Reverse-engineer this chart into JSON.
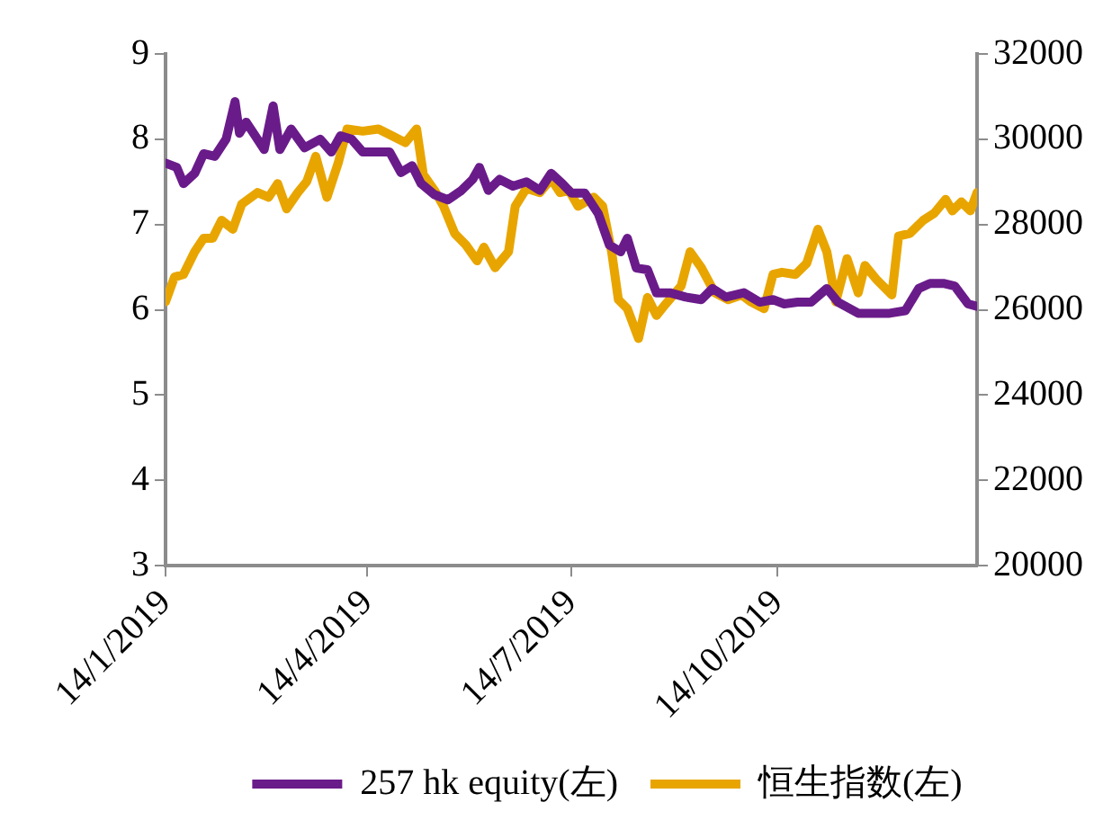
{
  "chart_data": {
    "type": "line",
    "xlim": [
      "2019-01-14",
      "2020-01-11"
    ],
    "xticks": [
      {
        "value": "2019-01-14",
        "label": "14/1/2019"
      },
      {
        "value": "2019-04-14",
        "label": "14/4/2019"
      },
      {
        "value": "2019-07-14",
        "label": "14/7/2019"
      },
      {
        "value": "2019-10-14",
        "label": "14/10/2019"
      }
    ],
    "ylim": [
      3,
      9
    ],
    "yticks": [
      3,
      4,
      5,
      6,
      7,
      8,
      9
    ],
    "y2lim": [
      20000,
      32000
    ],
    "y2ticks": [
      20000,
      22000,
      24000,
      26000,
      28000,
      30000,
      32000
    ],
    "grid": false,
    "legend": "bottom",
    "marker": "none",
    "line_style": "solid",
    "series": [
      {
        "name": "257 hk equity(左)",
        "color": "#6a1b8a",
        "x": [
          "2019-01-14",
          "2019-01-19",
          "2019-01-22",
          "2019-01-27",
          "2019-01-31",
          "2019-02-05",
          "2019-02-10",
          "2019-02-14",
          "2019-02-16",
          "2019-02-19",
          "2019-02-23",
          "2019-02-27",
          "2019-03-03",
          "2019-03-06",
          "2019-03-11",
          "2019-03-17",
          "2019-03-24",
          "2019-03-29",
          "2019-04-02",
          "2019-04-07",
          "2019-04-12",
          "2019-04-19",
          "2019-04-24",
          "2019-04-29",
          "2019-05-04",
          "2019-05-08",
          "2019-05-14",
          "2019-05-20",
          "2019-05-26",
          "2019-05-31",
          "2019-06-03",
          "2019-06-07",
          "2019-06-12",
          "2019-06-18",
          "2019-06-24",
          "2019-06-30",
          "2019-07-05",
          "2019-07-10",
          "2019-07-14",
          "2019-07-20",
          "2019-07-26",
          "2019-07-31",
          "2019-08-05",
          "2019-08-08",
          "2019-08-12",
          "2019-08-17",
          "2019-08-21",
          "2019-08-27",
          "2019-09-03",
          "2019-09-10",
          "2019-09-15",
          "2019-09-21",
          "2019-09-29",
          "2019-10-06",
          "2019-10-12",
          "2019-10-17",
          "2019-10-23",
          "2019-10-29",
          "2019-11-05",
          "2019-11-10",
          "2019-11-19",
          "2019-11-26",
          "2019-12-03",
          "2019-12-10",
          "2019-12-16",
          "2019-12-21",
          "2019-12-27",
          "2020-01-01",
          "2020-01-07",
          "2020-01-11"
        ],
        "values": [
          7.72,
          7.67,
          7.48,
          7.6,
          7.83,
          7.8,
          8.0,
          8.44,
          8.07,
          8.2,
          8.04,
          7.88,
          8.39,
          7.88,
          8.12,
          7.9,
          8.0,
          7.85,
          8.04,
          8.0,
          7.85,
          7.85,
          7.85,
          7.61,
          7.69,
          7.48,
          7.35,
          7.29,
          7.4,
          7.53,
          7.67,
          7.4,
          7.53,
          7.45,
          7.5,
          7.4,
          7.6,
          7.48,
          7.37,
          7.37,
          7.13,
          6.76,
          6.68,
          6.84,
          6.49,
          6.47,
          6.2,
          6.2,
          6.15,
          6.12,
          6.25,
          6.15,
          6.2,
          6.09,
          6.12,
          6.07,
          6.09,
          6.09,
          6.25,
          6.09,
          5.96,
          5.96,
          5.96,
          5.99,
          6.25,
          6.31,
          6.31,
          6.28,
          6.07,
          6.04
        ]
      },
      {
        "name": "恒生指数(左)",
        "color": "#e8a500",
        "axis": "y2",
        "x": [
          "2019-01-14",
          "2019-01-18",
          "2019-01-22",
          "2019-01-27",
          "2019-01-31",
          "2019-02-04",
          "2019-02-08",
          "2019-02-13",
          "2019-02-17",
          "2019-02-24",
          "2019-03-01",
          "2019-03-05",
          "2019-03-09",
          "2019-03-14",
          "2019-03-18",
          "2019-03-22",
          "2019-03-27",
          "2019-04-01",
          "2019-04-05",
          "2019-04-12",
          "2019-04-19",
          "2019-04-25",
          "2019-05-01",
          "2019-05-06",
          "2019-05-09",
          "2019-05-14",
          "2019-05-18",
          "2019-05-23",
          "2019-05-28",
          "2019-06-02",
          "2019-06-05",
          "2019-06-10",
          "2019-06-16",
          "2019-06-19",
          "2019-06-24",
          "2019-06-30",
          "2019-07-05",
          "2019-07-09",
          "2019-07-13",
          "2019-07-17",
          "2019-07-24",
          "2019-07-28",
          "2019-08-01",
          "2019-08-04",
          "2019-08-08",
          "2019-08-13",
          "2019-08-17",
          "2019-08-21",
          "2019-08-25",
          "2019-09-01",
          "2019-09-05",
          "2019-09-10",
          "2019-09-16",
          "2019-09-22",
          "2019-09-28",
          "2019-10-02",
          "2019-10-08",
          "2019-10-12",
          "2019-10-16",
          "2019-10-22",
          "2019-10-27",
          "2019-11-01",
          "2019-11-05",
          "2019-11-09",
          "2019-11-14",
          "2019-11-19",
          "2019-11-22",
          "2019-11-27",
          "2019-12-04",
          "2019-12-07",
          "2019-12-12",
          "2019-12-18",
          "2019-12-23",
          "2019-12-28",
          "2019-12-31",
          "2020-01-04",
          "2020-01-08",
          "2020-01-11"
        ],
        "values": [
          26190,
          26770,
          26830,
          27360,
          27680,
          27680,
          28100,
          27890,
          28480,
          28750,
          28640,
          28960,
          28370,
          28750,
          29010,
          29600,
          28640,
          29440,
          30240,
          30190,
          30240,
          30080,
          29920,
          30240,
          29170,
          28800,
          28430,
          27790,
          27520,
          27150,
          27470,
          26990,
          27360,
          28430,
          28850,
          28750,
          29070,
          28750,
          28800,
          28430,
          28640,
          28430,
          27360,
          26240,
          26030,
          25330,
          26290,
          25870,
          26130,
          26560,
          27360,
          26990,
          26400,
          26240,
          26350,
          26190,
          26030,
          26830,
          26880,
          26830,
          27090,
          27890,
          27360,
          26190,
          27200,
          26400,
          27040,
          26720,
          26350,
          27730,
          27790,
          28100,
          28270,
          28590,
          28320,
          28530,
          28320,
          28750
        ]
      }
    ]
  }
}
